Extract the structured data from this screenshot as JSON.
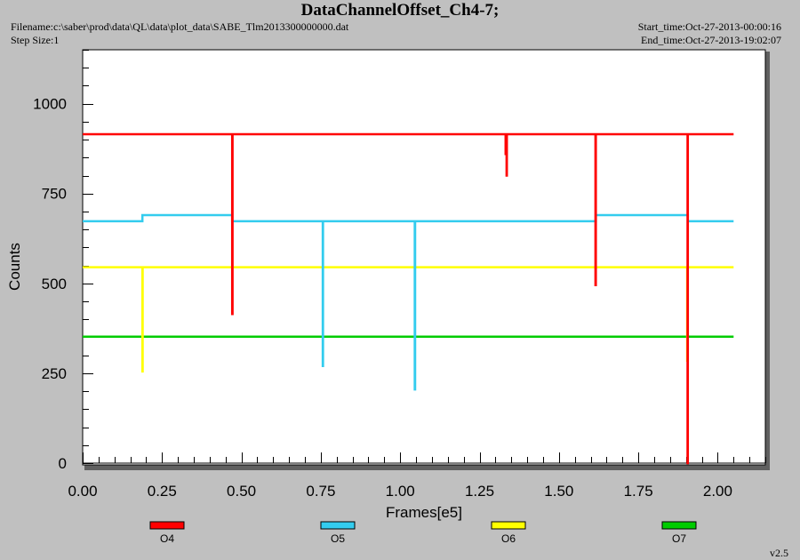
{
  "header": {
    "title": "DataChannelOffset_Ch4-7;",
    "filename": "Filename:c:\\saber\\prod\\data\\QL\\data\\plot_data\\SABE_Tlm2013300000000.dat",
    "step_size": "Step Size:1",
    "start_time": "Start_time:Oct-27-2013-00:00:16",
    "end_time": "End_time:Oct-27-2013-19:02:07"
  },
  "footer": {
    "version": "v2.5"
  },
  "chart_data": {
    "type": "line",
    "title": "DataChannelOffset_Ch4-7;",
    "xlabel": "Frames[e5]",
    "ylabel": "Counts",
    "xlim": [
      0,
      2.15
    ],
    "ylim": [
      0,
      1150
    ],
    "xticks": [
      0.0,
      0.25,
      0.5,
      0.75,
      1.0,
      1.25,
      1.5,
      1.75,
      2.0
    ],
    "xtick_labels": [
      "0.00",
      "0.25",
      "0.50",
      "0.75",
      "1.00",
      "1.25",
      "1.50",
      "1.75",
      "2.00"
    ],
    "yticks": [
      0,
      250,
      500,
      750,
      1000
    ],
    "ytick_labels": [
      "0",
      "250",
      "500",
      "750",
      "1000"
    ],
    "grid": false,
    "legend": "bottom",
    "series": [
      {
        "name": "O4",
        "color": "#ff0000",
        "x": [
          0.0,
          0.471,
          0.471,
          0.472,
          0.472,
          1.332,
          1.332,
          1.333,
          1.333,
          1.335,
          1.335,
          1.336,
          1.336,
          1.615,
          1.615,
          1.616,
          1.616,
          1.905,
          1.905,
          1.906,
          1.906,
          2.05
        ],
        "y": [
          915,
          915,
          415,
          415,
          915,
          915,
          860,
          860,
          915,
          915,
          800,
          800,
          915,
          915,
          495,
          495,
          915,
          915,
          0,
          0,
          915,
          915
        ]
      },
      {
        "name": "O5",
        "color": "#33ccee",
        "x": [
          0.0,
          0.188,
          0.188,
          0.471,
          0.471,
          0.756,
          0.756,
          0.757,
          0.757,
          1.046,
          1.046,
          1.047,
          1.047,
          1.616,
          1.616,
          1.906,
          1.906,
          2.05
        ],
        "y": [
          673,
          673,
          690,
          690,
          673,
          673,
          270,
          270,
          673,
          673,
          205,
          205,
          673,
          673,
          690,
          690,
          673,
          673
        ]
      },
      {
        "name": "O6",
        "color": "#ffff00",
        "x": [
          0.0,
          0.188,
          0.188,
          0.189,
          0.189,
          1.904,
          1.904,
          1.905,
          1.905,
          2.05
        ],
        "y": [
          545,
          545,
          255,
          255,
          545,
          545,
          285,
          285,
          545,
          545
        ]
      },
      {
        "name": "O7",
        "color": "#00cc00",
        "x": [
          0.0,
          2.05
        ],
        "y": [
          352,
          352
        ]
      }
    ]
  }
}
